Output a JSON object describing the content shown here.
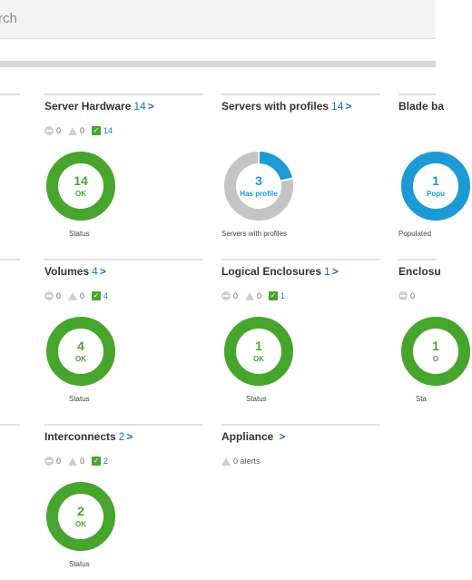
{
  "search": {
    "text": "rch"
  },
  "panels": [
    {
      "title": "Server Hardware",
      "count": "14",
      "chev": ">",
      "status": {
        "disabled": "0",
        "warning": "0",
        "ok": "14"
      },
      "donut": {
        "num": "14",
        "txt": "OK",
        "type": "ok"
      },
      "caption": "Status"
    },
    {
      "title": "Servers with profiles",
      "count": "14",
      "chev": ">",
      "donut": {
        "num": "3",
        "txt": "Has profile",
        "type": "profile",
        "fraction": 0.2143
      },
      "caption": "Servers with profiles"
    },
    {
      "title": "Blade ba",
      "donut": {
        "num": "1",
        "txt": "Popu",
        "type": "blade"
      },
      "caption": "Populated"
    },
    {
      "title": "Volumes",
      "count": "4",
      "chev": ">",
      "status": {
        "disabled": "0",
        "warning": "0",
        "ok": "4"
      },
      "donut": {
        "num": "4",
        "txt": "OK",
        "type": "ok"
      },
      "caption": "Status"
    },
    {
      "title": "Logical Enclosures",
      "count": "1",
      "chev": ">",
      "status": {
        "disabled": "0",
        "warning": "0",
        "ok": "1"
      },
      "donut": {
        "num": "1",
        "txt": "OK",
        "type": "ok"
      },
      "caption": "Status"
    },
    {
      "title": "Enclosu",
      "status": {
        "disabled": "0"
      },
      "donut": {
        "num": "1",
        "txt": "O",
        "type": "ok"
      },
      "caption": "Sta"
    },
    {
      "title": "Interconnects",
      "count": "2",
      "chev": ">",
      "status": {
        "disabled": "0",
        "warning": "0",
        "ok": "2"
      },
      "donut": {
        "num": "2",
        "txt": "OK",
        "type": "ok"
      },
      "caption": "Status"
    },
    {
      "title": "Appliance",
      "chev": ">",
      "alerts": "0 alerts"
    }
  ],
  "colors": {
    "ok": "#47a52d",
    "profile": "#1d9ad6",
    "gray": "#c4c4c4",
    "link": "#1a73b8"
  }
}
